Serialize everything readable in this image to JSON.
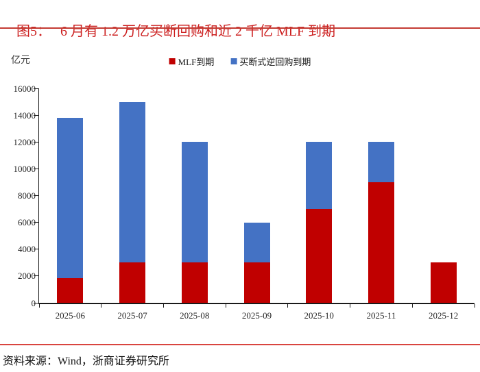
{
  "figure": {
    "title_prefix": "图5：",
    "title_text": "6 月有 1.2 万亿买断回购和近 2 千亿 MLF 到期",
    "source_note": "资料来源：Wind，浙商证券研究所"
  },
  "colors": {
    "title_red": "#cc1f1f",
    "rule_red": "#c43a32",
    "mlf_red": "#c00000",
    "repo_blue": "#4472c4",
    "axis_black": "#1a1a1a"
  },
  "chart_data": {
    "type": "bar",
    "stacked": true,
    "title": "6 月有 1.2 万亿买断回购和近 2 千亿 MLF 到期",
    "ylabel": "亿元",
    "xlabel": "",
    "categories": [
      "2025-06",
      "2025-07",
      "2025-08",
      "2025-09",
      "2025-10",
      "2025-11",
      "2025-12"
    ],
    "series": [
      {
        "name": "MLF到期",
        "color": "#c00000",
        "values": [
          1820,
          3000,
          3000,
          3000,
          7000,
          9000,
          3000
        ]
      },
      {
        "name": "买断式逆回购到期",
        "color": "#4472c4",
        "values": [
          12000,
          12000,
          9000,
          3000,
          5000,
          3000,
          0
        ]
      }
    ],
    "ylim": [
      0,
      16000
    ],
    "ytick_step": 2000,
    "ytick_labels": [
      "0",
      "2000",
      "4000",
      "6000",
      "8000",
      "10000",
      "12000",
      "14000",
      "16000"
    ],
    "grid": false,
    "legend_position": "top-center"
  }
}
